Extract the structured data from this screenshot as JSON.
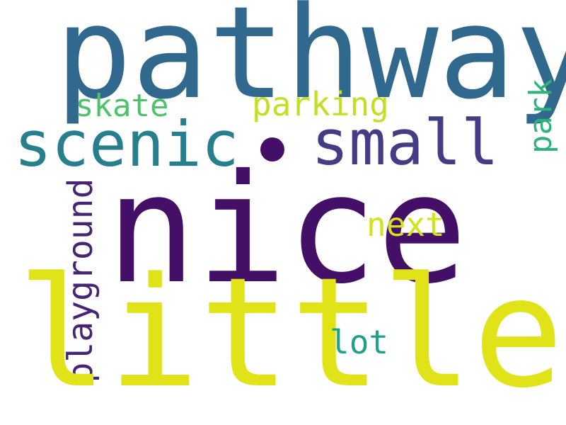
{
  "words": {
    "pathway": {
      "text": "pathway",
      "color": "#31688e"
    },
    "nice": {
      "text": "nice",
      "color": "#440f66"
    },
    "little": {
      "text": "little",
      "color": "#dfe318"
    },
    "scenic": {
      "text": "scenic",
      "color": "#277f8e"
    },
    "small": {
      "text": "small",
      "color": "#433d84"
    },
    "skate": {
      "text": "skate",
      "color": "#4ec36b"
    },
    "parking": {
      "text": "parking",
      "color": "#c2df23"
    },
    "park": {
      "text": "park",
      "color": "#2db27d"
    },
    "playground": {
      "text": "playground",
      "color": "#482475"
    },
    "next": {
      "text": "next",
      "color": "#d2e21b"
    },
    "lot": {
      "text": "lot",
      "color": "#1fa187"
    }
  },
  "separator_dot": {
    "color": "#440f66"
  }
}
